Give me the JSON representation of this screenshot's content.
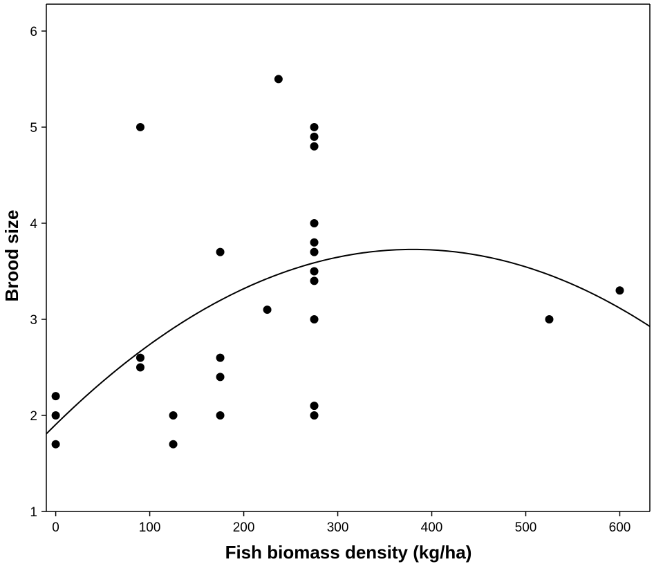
{
  "chart_data": {
    "type": "scatter",
    "title": "",
    "xlabel": "Fish biomass density (kg/ha)",
    "ylabel": "Brood size",
    "xlim": [
      -10,
      632
    ],
    "ylim": [
      1,
      6.28
    ],
    "x_ticks": [
      0,
      100,
      200,
      300,
      400,
      500,
      600
    ],
    "y_ticks": [
      1,
      2,
      3,
      4,
      5,
      6
    ],
    "grid": false,
    "legend": "none",
    "point_color": "#000000",
    "series": [
      {
        "points": [
          [
            0,
            2.2
          ],
          [
            0,
            2.0
          ],
          [
            0,
            1.7
          ],
          [
            90,
            5.0
          ],
          [
            90,
            2.6
          ],
          [
            90,
            2.5
          ],
          [
            125,
            2.0
          ],
          [
            125,
            1.7
          ],
          [
            175,
            3.7
          ],
          [
            175,
            2.6
          ],
          [
            175,
            2.4
          ],
          [
            175,
            2.0
          ],
          [
            225,
            3.1
          ],
          [
            237,
            5.5
          ],
          [
            275,
            5.0
          ],
          [
            275,
            4.9
          ],
          [
            275,
            4.8
          ],
          [
            275,
            4.0
          ],
          [
            275,
            3.8
          ],
          [
            275,
            3.7
          ],
          [
            275,
            3.5
          ],
          [
            275,
            3.4
          ],
          [
            275,
            3.0
          ],
          [
            275,
            2.1
          ],
          [
            275,
            2.0
          ],
          [
            525,
            3.0
          ],
          [
            600,
            3.3
          ]
        ]
      }
    ],
    "fit_curve": {
      "type": "quadratic",
      "coefficients": [
        1.905,
        0.009591,
        -1.262e-05
      ],
      "x_range": [
        -10,
        632
      ],
      "color": "#000000"
    }
  }
}
